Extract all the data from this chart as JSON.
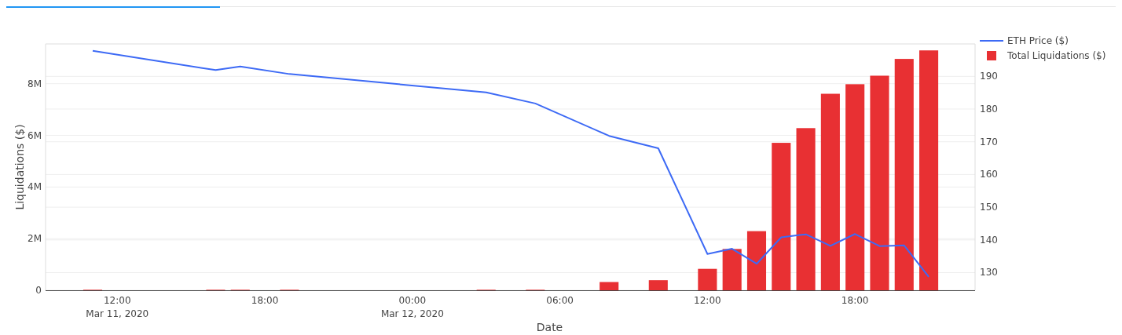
{
  "chart_data": {
    "type": "bar",
    "xlabel": "Date",
    "ylabel": "Liquidations ($)",
    "x": [
      "2020-03-11T11:00",
      "2020-03-11T16:00",
      "2020-03-11T17:00",
      "2020-03-11T19:00",
      "2020-03-12T03:00",
      "2020-03-12T05:00",
      "2020-03-12T08:00",
      "2020-03-12T10:00",
      "2020-03-12T12:00",
      "2020-03-12T13:00",
      "2020-03-12T14:00",
      "2020-03-12T15:00",
      "2020-03-12T16:00",
      "2020-03-12T17:00",
      "2020-03-12T18:00",
      "2020-03-12T19:00",
      "2020-03-12T20:00",
      "2020-03-12T21:00"
    ],
    "series": [
      {
        "name": "ETH Price ($)",
        "type": "line",
        "axis": "y2",
        "color": "#3d6af5",
        "values": [
          197.8,
          191.9,
          193.0,
          190.7,
          185.1,
          181.7,
          171.8,
          168.0,
          135.7,
          137.3,
          132.7,
          140.8,
          141.7,
          138.2,
          141.8,
          138.1,
          138.3,
          128.7
        ]
      },
      {
        "name": "Total Liquidations ($)",
        "color": "#e83033",
        "values": [
          20000,
          20000,
          20000,
          20000,
          20000,
          20000,
          320000,
          390000,
          830000,
          1600000,
          2290000,
          5710000,
          6280000,
          7610000,
          7980000,
          8310000,
          8960000,
          9290000
        ]
      }
    ],
    "xlim": [
      "2020-03-11T09:05",
      "2020-03-12T22:53"
    ],
    "xticks": [
      {
        "value": "2020-03-11T12:00",
        "label": "12:00\nMar 11, 2020"
      },
      {
        "value": "2020-03-11T18:00",
        "label": "18:00"
      },
      {
        "value": "2020-03-12T00:00",
        "label": "00:00\nMar 12, 2020"
      },
      {
        "value": "2020-03-12T06:00",
        "label": "06:00"
      },
      {
        "value": "2020-03-12T12:00",
        "label": "12:00"
      },
      {
        "value": "2020-03-12T18:00",
        "label": "18:00"
      }
    ],
    "ylim": [
      0,
      9540000
    ],
    "yticks": [
      0,
      {
        "value": 2000000,
        "label": "2M"
      },
      {
        "value": 4000000,
        "label": "4M"
      },
      {
        "value": 6000000,
        "label": "6M"
      },
      {
        "value": 8000000,
        "label": "8M"
      }
    ],
    "y2lim": [
      124.6,
      199.9
    ],
    "y2ticks": [
      130,
      140,
      150,
      160,
      170,
      180,
      190
    ],
    "grid": "y",
    "legend": "top right"
  }
}
